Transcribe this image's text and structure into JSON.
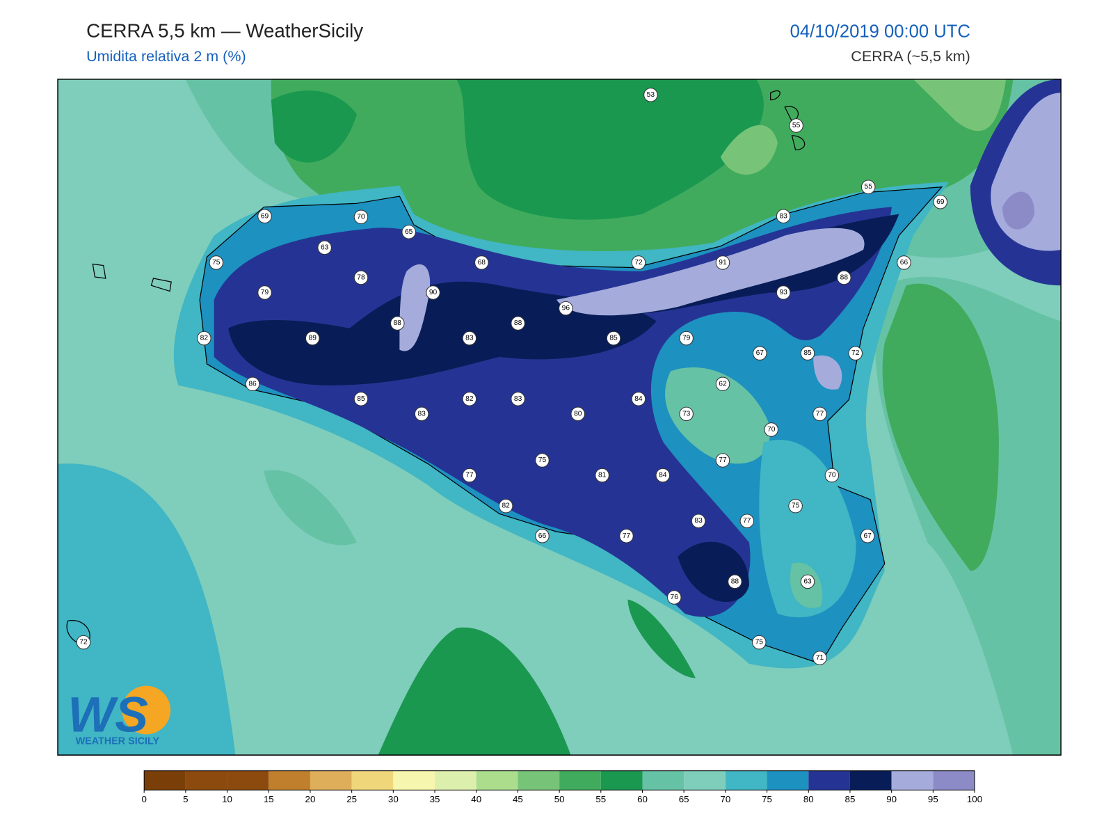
{
  "header": {
    "title": "CERRA 5,5 km — WeatherSicily",
    "subtitle": "Umidita relativa 2 m (%)",
    "date": "04/10/2019 00:00 UTC",
    "model": "CERRA (~5,5 km)"
  },
  "map": {
    "stations": [
      53,
      55,
      55,
      69,
      83,
      69,
      70,
      65,
      63,
      75,
      68,
      72,
      91,
      66,
      78,
      88,
      79,
      90,
      93,
      96,
      88,
      88,
      82,
      89,
      83,
      85,
      79,
      67,
      85,
      72,
      86,
      62,
      85,
      82,
      83,
      84,
      83,
      80,
      73,
      77,
      70,
      75,
      77,
      77,
      81,
      84,
      70,
      82,
      75,
      83,
      77,
      66,
      77,
      67,
      63,
      88,
      76,
      72,
      75,
      71
    ]
  },
  "logo": {
    "mark": "WS",
    "name": "WEATHER SICILY"
  },
  "colorbar": {
    "ticks": [
      0,
      5,
      10,
      15,
      20,
      25,
      30,
      35,
      40,
      45,
      50,
      55,
      60,
      65,
      70,
      75,
      80,
      85,
      90,
      95,
      100
    ],
    "colors": [
      "#7a3f08",
      "#8c4a0e",
      "#8c4a0e",
      "#bf7f2c",
      "#deae5b",
      "#f0d67b",
      "#f7f6ae",
      "#ddefad",
      "#abdd8d",
      "#77c479",
      "#41ab5d",
      "#1a9850",
      "#66c2a4",
      "#7fcdbb",
      "#41b6c4",
      "#1d91c0",
      "#253494",
      "#081d58",
      "#a5acdc",
      "#8c8bc8"
    ]
  }
}
